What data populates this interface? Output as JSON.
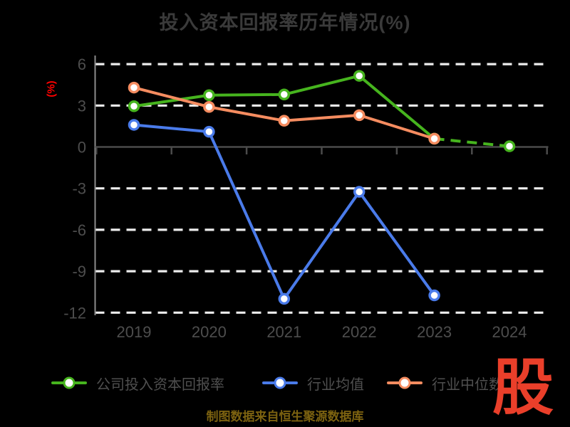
{
  "title": "投入资本回报率历年情况(%)",
  "y_axis_label": "(%)",
  "caption": "制图数据来自恒生聚源数据库",
  "watermark_glyph": "股",
  "colors": {
    "background": "#000000",
    "title_text": "#3a3a3a",
    "axis_text": "#4d4d4d",
    "legend_text": "#4f4f4f",
    "grid_line": "#ededed",
    "y_axis_line": "#8c8c8c",
    "x_axis_line": "#4b4b4b",
    "y_label_red": "#ff0000",
    "caption_gold": "#7c6210",
    "watermark_red": "#ea3f2a",
    "marker_fill": "#ffffff"
  },
  "chart_data": {
    "type": "line",
    "title": "投入资本回报率历年情况(%)",
    "xlabel": "",
    "ylabel": "(%)",
    "categories": [
      "2019",
      "2020",
      "2021",
      "2022",
      "2023",
      "2024"
    ],
    "series": [
      {
        "name": "公司投入资本回报率",
        "color": "#46b41e",
        "values": [
          2.95,
          3.75,
          3.8,
          5.15,
          0.6,
          0.05
        ],
        "last_segment_dashed": true
      },
      {
        "name": "行业均值",
        "color": "#4a7bea",
        "values": [
          1.6,
          1.1,
          -11.0,
          -3.25,
          -10.75,
          null
        ],
        "last_segment_dashed": false
      },
      {
        "name": "行业中位数",
        "color": "#f58c60",
        "values": [
          4.3,
          2.9,
          1.9,
          2.3,
          0.6,
          null
        ],
        "last_segment_dashed": false
      }
    ],
    "yticks": [
      6,
      3,
      0,
      -3,
      -6,
      -9,
      -12
    ],
    "ylim": [
      -13,
      6.5
    ],
    "grid": "horizontal-dashed-white",
    "legend_position": "bottom",
    "markers": "white-filled-circles"
  }
}
